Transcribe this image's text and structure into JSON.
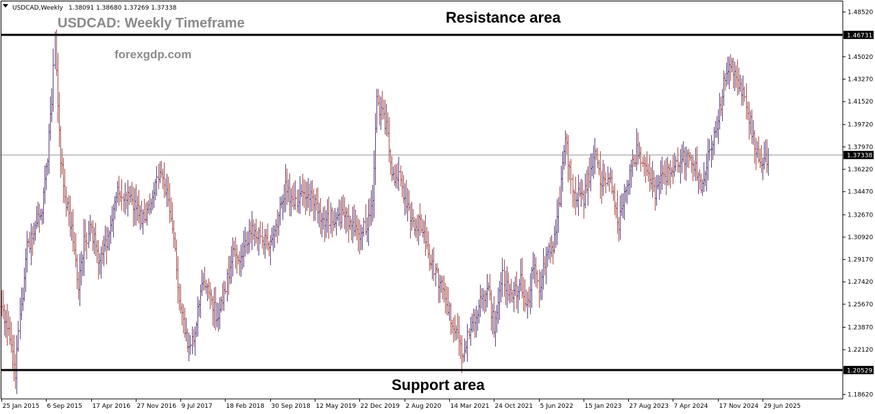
{
  "header": {
    "symbol_info": "USDCAD,Weekly",
    "ohlc_info": "1.38091 1.38680 1.37269 1.37338",
    "title": "USDCAD: Weekly Timeframe",
    "website": "forexgdp.com"
  },
  "annotations": {
    "resistance_label": "Resistance area",
    "support_label": "Support area"
  },
  "colors": {
    "up_bar": "#5a3c7a",
    "down_bar": "#a44a48",
    "level_line": "#000000",
    "current_line": "#909090",
    "axis": "#000000"
  },
  "chart_data": {
    "type": "ohlc",
    "title": "USDCAD: Weekly Timeframe",
    "xlabel": "",
    "ylabel": "",
    "grid": false,
    "ylim": [
      1.1827,
      1.4935
    ],
    "y_ticks": [
      "1.48520",
      "1.45020",
      "1.43270",
      "1.41520",
      "1.39720",
      "1.37970",
      "1.36220",
      "1.34470",
      "1.32670",
      "1.30920",
      "1.29170",
      "1.27420",
      "1.25670",
      "1.23870",
      "1.22120",
      "1.18620"
    ],
    "x_ticks": [
      "25 Jan 2015",
      "6 Sep 2015",
      "17 Apr 2016",
      "27 Nov 2016",
      "9 Jul 2017",
      "18 Feb 2018",
      "30 Sep 2018",
      "12 May 2019",
      "22 Dec 2019",
      "2 Aug 2020",
      "14 Mar 2021",
      "24 Oct 2021",
      "5 Jun 2022",
      "15 Jan 2023",
      "27 Aug 2023",
      "7 Apr 2024",
      "17 Nov 2024",
      "29 Jun 2025"
    ],
    "levels": [
      {
        "value": 1.46731,
        "label": "1.46731"
      },
      {
        "value": 1.20529,
        "label": "1.20529"
      }
    ],
    "current_price": {
      "value": 1.37338,
      "label": "1.37338"
    },
    "price_path": [
      [
        "2015-01-25",
        1.255
      ],
      [
        "2015-03-08",
        1.235
      ],
      [
        "2015-04-05",
        1.205
      ],
      [
        "2015-04-26",
        1.245
      ],
      [
        "2015-05-31",
        1.3
      ],
      [
        "2015-07-05",
        1.315
      ],
      [
        "2015-08-16",
        1.33
      ],
      [
        "2015-09-06",
        1.36
      ],
      [
        "2015-10-04",
        1.415
      ],
      [
        "2015-10-18",
        1.465
      ],
      [
        "2015-11-15",
        1.37
      ],
      [
        "2015-12-20",
        1.33
      ],
      [
        "2016-01-24",
        1.305
      ],
      [
        "2016-02-14",
        1.27
      ],
      [
        "2016-03-13",
        1.305
      ],
      [
        "2016-04-17",
        1.315
      ],
      [
        "2016-05-29",
        1.29
      ],
      [
        "2016-07-10",
        1.31
      ],
      [
        "2016-08-21",
        1.345
      ],
      [
        "2016-10-09",
        1.34
      ],
      [
        "2016-11-27",
        1.335
      ],
      [
        "2017-01-08",
        1.32
      ],
      [
        "2017-02-19",
        1.34
      ],
      [
        "2017-03-26",
        1.36
      ],
      [
        "2017-05-07",
        1.34
      ],
      [
        "2017-06-11",
        1.3
      ],
      [
        "2017-07-09",
        1.25
      ],
      [
        "2017-08-06",
        1.23
      ],
      [
        "2017-08-27",
        1.22
      ],
      [
        "2017-09-24",
        1.245
      ],
      [
        "2017-10-22",
        1.27
      ],
      [
        "2017-12-03",
        1.265
      ],
      [
        "2018-01-07",
        1.245
      ],
      [
        "2018-02-18",
        1.27
      ],
      [
        "2018-03-25",
        1.295
      ],
      [
        "2018-05-06",
        1.295
      ],
      [
        "2018-06-24",
        1.315
      ],
      [
        "2018-08-05",
        1.31
      ],
      [
        "2018-09-30",
        1.3
      ],
      [
        "2018-11-04",
        1.32
      ],
      [
        "2018-12-16",
        1.35
      ],
      [
        "2019-01-27",
        1.335
      ],
      [
        "2019-03-10",
        1.34
      ],
      [
        "2019-05-12",
        1.34
      ],
      [
        "2019-06-23",
        1.32
      ],
      [
        "2019-08-04",
        1.325
      ],
      [
        "2019-09-29",
        1.325
      ],
      [
        "2019-11-10",
        1.32
      ],
      [
        "2019-12-22",
        1.31
      ],
      [
        "2020-01-26",
        1.32
      ],
      [
        "2020-02-23",
        1.335
      ],
      [
        "2020-03-15",
        1.42
      ],
      [
        "2020-03-29",
        1.41
      ],
      [
        "2020-05-03",
        1.395
      ],
      [
        "2020-06-07",
        1.355
      ],
      [
        "2020-07-05",
        1.355
      ],
      [
        "2020-08-02",
        1.34
      ],
      [
        "2020-09-13",
        1.32
      ],
      [
        "2020-10-25",
        1.32
      ],
      [
        "2020-12-06",
        1.29
      ],
      [
        "2021-01-17",
        1.275
      ],
      [
        "2021-03-14",
        1.25
      ],
      [
        "2021-04-18",
        1.235
      ],
      [
        "2021-05-16",
        1.215
      ],
      [
        "2021-06-13",
        1.23
      ],
      [
        "2021-07-25",
        1.25
      ],
      [
        "2021-08-22",
        1.265
      ],
      [
        "2021-09-26",
        1.265
      ],
      [
        "2021-10-24",
        1.24
      ],
      [
        "2021-12-05",
        1.28
      ],
      [
        "2022-01-16",
        1.26
      ],
      [
        "2022-03-06",
        1.275
      ],
      [
        "2022-04-10",
        1.255
      ],
      [
        "2022-05-08",
        1.29
      ],
      [
        "2022-06-05",
        1.265
      ],
      [
        "2022-07-10",
        1.295
      ],
      [
        "2022-08-14",
        1.3
      ],
      [
        "2022-09-18",
        1.34
      ],
      [
        "2022-10-16",
        1.385
      ],
      [
        "2022-11-20",
        1.345
      ],
      [
        "2023-01-15",
        1.34
      ],
      [
        "2023-03-12",
        1.375
      ],
      [
        "2023-04-16",
        1.35
      ],
      [
        "2023-05-28",
        1.355
      ],
      [
        "2023-07-09",
        1.32
      ],
      [
        "2023-08-27",
        1.355
      ],
      [
        "2023-10-08",
        1.375
      ],
      [
        "2023-11-26",
        1.36
      ],
      [
        "2024-01-07",
        1.345
      ],
      [
        "2024-02-18",
        1.355
      ],
      [
        "2024-04-07",
        1.365
      ],
      [
        "2024-05-19",
        1.37
      ],
      [
        "2024-07-07",
        1.37
      ],
      [
        "2024-08-25",
        1.35
      ],
      [
        "2024-10-06",
        1.375
      ],
      [
        "2024-11-17",
        1.4
      ],
      [
        "2024-12-22",
        1.435
      ],
      [
        "2025-01-26",
        1.445
      ],
      [
        "2025-03-02",
        1.43
      ],
      [
        "2025-04-06",
        1.415
      ],
      [
        "2025-05-18",
        1.38
      ],
      [
        "2025-06-29",
        1.365
      ],
      [
        "2025-07-27",
        1.37338
      ]
    ]
  }
}
